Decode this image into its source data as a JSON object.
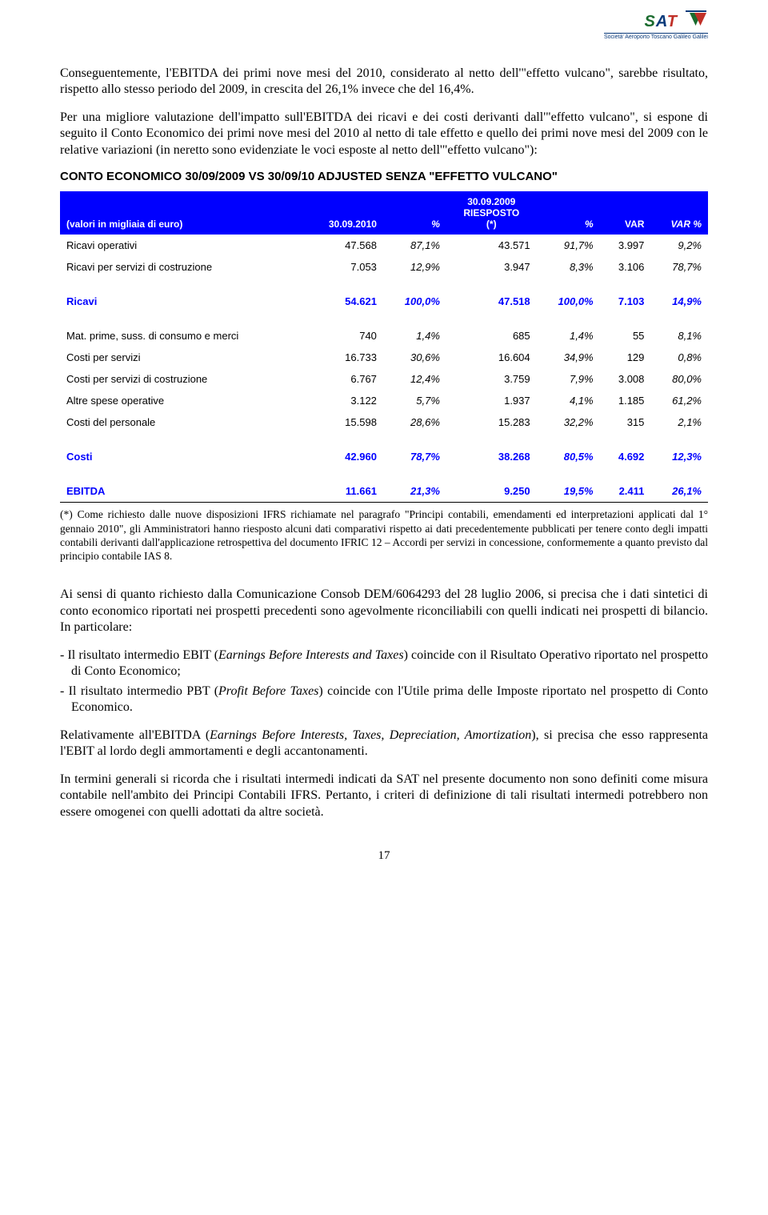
{
  "logo": {
    "company_line": "Società' Aeroporto Toscano Galileo Galilei"
  },
  "paragraphs": {
    "p1": "Conseguentemente, l'EBITDA dei primi nove mesi del 2010, considerato al netto dell'\"effetto vulcano\", sarebbe risultato, rispetto allo stesso periodo del 2009, in crescita del 26,1% invece che del 16,4%.",
    "p2": "Per una migliore valutazione dell'impatto sull'EBITDA dei ricavi e dei costi derivanti dall'\"effetto vulcano\", si espone di seguito il Conto Economico dei primi nove mesi del 2010 al netto di tale effetto e quello dei primi nove mesi del 2009 con le relative variazioni (in neretto sono evidenziate le voci esposte al netto dell'\"effetto vulcano\"):",
    "section_title": "CONTO ECONOMICO 30/09/2009 VS 30/09/10 ADJUSTED SENZA \"EFFETTO VULCANO\"",
    "footnote": "(*) Come richiesto dalle nuove disposizioni IFRS richiamate nel paragrafo \"Principi contabili, emendamenti ed interpretazioni applicati dal 1° gennaio 2010\", gli Amministratori hanno riesposto alcuni dati comparativi rispetto ai dati precedentemente pubblicati per tenere conto degli impatti contabili derivanti dall'applicazione retrospettiva del documento IFRIC 12 – Accordi per servizi in concessione, conformemente a quanto previsto dal principio contabile IAS 8.",
    "p3": "Ai sensi di quanto richiesto dalla Comunicazione Consob DEM/6064293 del 28 luglio 2006, si precisa che i dati sintetici di conto economico riportati nei prospetti precedenti sono agevolmente riconciliabili con quelli indicati nei prospetti di bilancio. In particolare:",
    "p4a_prefix": "- Il risultato intermedio EBIT (",
    "p4a_italic": "Earnings Before Interests and Taxes",
    "p4a_suffix": ") coincide con il Risultato Operativo riportato nel prospetto di Conto Economico;",
    "p4b_prefix": "- Il risultato intermedio PBT (",
    "p4b_italic": "Profit Before Taxes",
    "p4b_suffix": ") coincide con l'Utile prima delle Imposte riportato nel prospetto di Conto Economico.",
    "p5_prefix": "Relativamente all'EBITDA (",
    "p5_italic": "Earnings Before Interests, Taxes, Depreciation, Amortization",
    "p5_suffix": "), si precisa che esso rappresenta l'EBIT al lordo degli ammortamenti e degli accantonamenti.",
    "p6": "In termini generali si ricorda che i risultati intermedi indicati da SAT nel presente documento non sono definiti come misura contabile nell'ambito dei Principi Contabili IFRS. Pertanto, i criteri di definizione di tali risultati intermedi potrebbero non essere omogenei con quelli adottati da altre società.",
    "page_number": "17"
  },
  "table": {
    "header": {
      "col_label": "(valori in migliaia di euro)",
      "col_2010": "30.09.2010",
      "col_pct1": "%",
      "col_2009_line1": "30.09.2009",
      "col_2009_line2": "RIESPOSTO",
      "col_2009_line3": "(*)",
      "col_pct2": "%",
      "col_var": "VAR",
      "col_varpct": "VAR %"
    },
    "rows": [
      {
        "label": "Ricavi operativi",
        "v2010": "47.568",
        "p1": "87,1%",
        "v2009": "43.571",
        "p2": "91,7%",
        "var": "3.997",
        "varp": "9,2%",
        "style": "normal"
      },
      {
        "label": "Ricavi per servizi di costruzione",
        "v2010": "7.053",
        "p1": "12,9%",
        "v2009": "3.947",
        "p2": "8,3%",
        "var": "3.106",
        "varp": "78,7%",
        "style": "normal"
      },
      {
        "label": "Ricavi",
        "v2010": "54.621",
        "p1": "100,0%",
        "v2009": "47.518",
        "p2": "100,0%",
        "var": "7.103",
        "varp": "14,9%",
        "style": "bold-blue"
      },
      {
        "label": "Mat. prime, suss. di consumo e merci",
        "v2010": "740",
        "p1": "1,4%",
        "v2009": "685",
        "p2": "1,4%",
        "var": "55",
        "varp": "8,1%",
        "style": "normal"
      },
      {
        "label": "Costi per servizi",
        "v2010": "16.733",
        "p1": "30,6%",
        "v2009": "16.604",
        "p2": "34,9%",
        "var": "129",
        "varp": "0,8%",
        "style": "normal"
      },
      {
        "label": "Costi per servizi di costruzione",
        "v2010": "6.767",
        "p1": "12,4%",
        "v2009": "3.759",
        "p2": "7,9%",
        "var": "3.008",
        "varp": "80,0%",
        "style": "normal"
      },
      {
        "label": "Altre spese operative",
        "v2010": "3.122",
        "p1": "5,7%",
        "v2009": "1.937",
        "p2": "4,1%",
        "var": "1.185",
        "varp": "61,2%",
        "style": "normal"
      },
      {
        "label": "Costi del personale",
        "v2010": "15.598",
        "p1": "28,6%",
        "v2009": "15.283",
        "p2": "32,2%",
        "var": "315",
        "varp": "2,1%",
        "style": "normal"
      },
      {
        "label": "Costi",
        "v2010": "42.960",
        "p1": "78,7%",
        "v2009": "38.268",
        "p2": "80,5%",
        "var": "4.692",
        "varp": "12,3%",
        "style": "bold-blue"
      },
      {
        "label": "EBITDA",
        "v2010": "11.661",
        "p1": "21,3%",
        "v2009": "9.250",
        "p2": "19,5%",
        "var": "2.411",
        "varp": "26,1%",
        "style": "bold-blue last"
      }
    ],
    "styling": {
      "header_bg": "#0000ff",
      "header_fg": "#ffffff",
      "bold_blue_color": "#0000ff",
      "font_family": "Arial",
      "font_size_body": 13,
      "font_size_header": 12
    }
  }
}
